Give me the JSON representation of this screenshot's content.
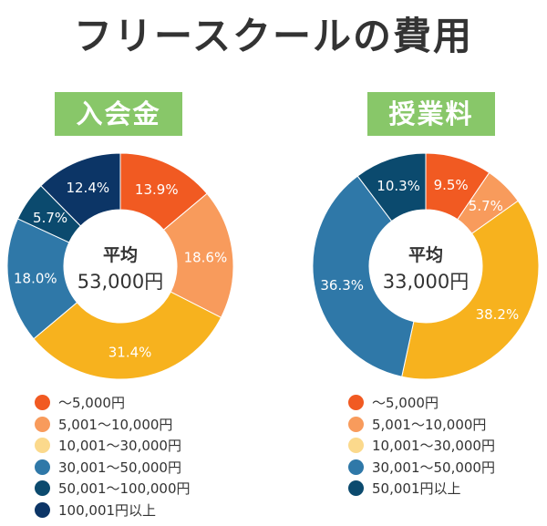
{
  "title": "フリースクールの費用",
  "colors": [
    "#f15a22",
    "#f89b5c",
    "#fbd98c",
    "#f7b21e",
    "#2f78a8",
    "#0b4a6e",
    "#0c3566"
  ],
  "chart_data": [
    {
      "type": "pie",
      "title": "入会金",
      "center_label": "平均",
      "center_value": "53,000円",
      "categories": [
        "〜5,000円",
        "5,001〜10,000円",
        "10,001〜30,000円",
        "30,001〜50,000円",
        "50,001〜100,000円",
        "100,001円以上"
      ],
      "legend_colors": [
        "#f15a22",
        "#f89b5c",
        "#fbd98c",
        "#2f78a8",
        "#0b4a6e",
        "#0c3566"
      ],
      "slices": [
        {
          "label": "13.9%",
          "value": 13.9,
          "color": "#f15a22"
        },
        {
          "label": "18.6%",
          "value": 18.6,
          "color": "#f89b5c"
        },
        {
          "label": "31.4%",
          "value": 31.4,
          "color": "#f7b21e"
        },
        {
          "label": "18.0%",
          "value": 18.0,
          "color": "#2f78a8"
        },
        {
          "label": "5.7%",
          "value": 5.7,
          "color": "#0b4a6e"
        },
        {
          "label": "12.4%",
          "value": 12.4,
          "color": "#0c3566"
        }
      ],
      "legend_placement": "bottom"
    },
    {
      "type": "pie",
      "title": "授業料",
      "center_label": "平均",
      "center_value": "33,000円",
      "categories": [
        "〜5,000円",
        "5,001〜10,000円",
        "10,001〜30,000円",
        "30,001〜50,000円",
        "50,001円以上"
      ],
      "legend_colors": [
        "#f15a22",
        "#f89b5c",
        "#fbd98c",
        "#2f78a8",
        "#0b4a6e"
      ],
      "slices": [
        {
          "label": "9.5%",
          "value": 9.5,
          "color": "#f15a22"
        },
        {
          "label": "5.7%",
          "value": 5.7,
          "color": "#f89b5c"
        },
        {
          "label": "38.2%",
          "value": 38.2,
          "color": "#f7b21e"
        },
        {
          "label": "36.3%",
          "value": 36.3,
          "color": "#2f78a8"
        },
        {
          "label": "10.3%",
          "value": 10.3,
          "color": "#0b4a6e"
        }
      ],
      "legend_placement": "bottom"
    }
  ]
}
